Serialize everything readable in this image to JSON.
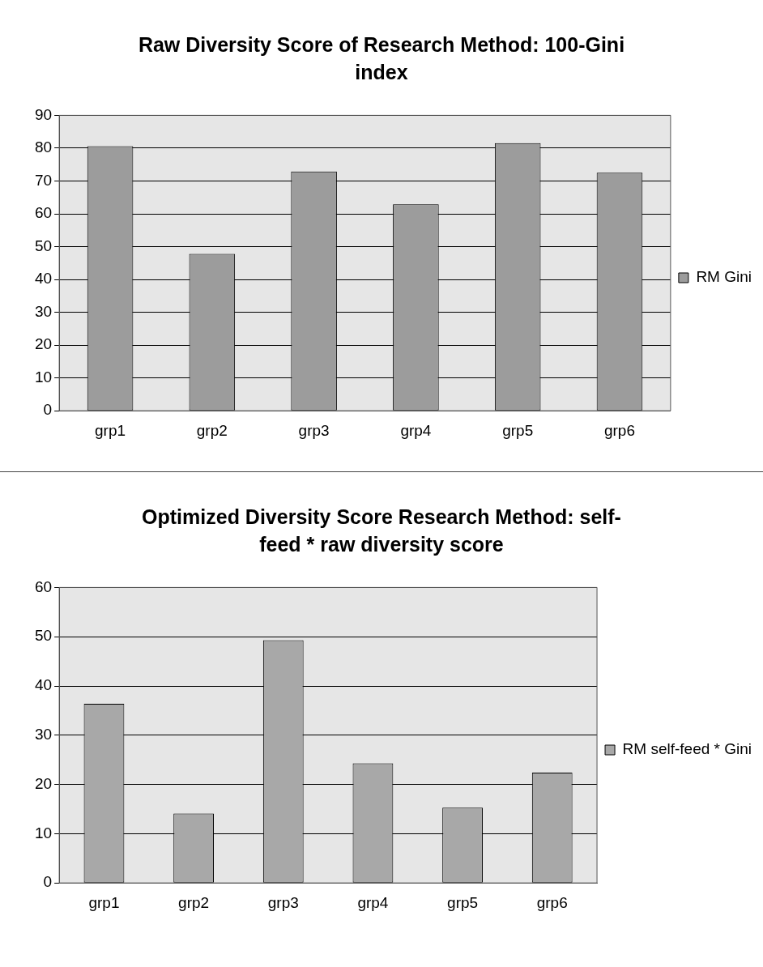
{
  "chart_data": [
    {
      "type": "bar",
      "title": "Raw Diversity Score of Research Method: 100-Gini index",
      "categories": [
        "grp1",
        "grp2",
        "grp3",
        "grp4",
        "grp5",
        "grp6"
      ],
      "series": [
        {
          "name": "RM Gini",
          "color": "#9c9c9c",
          "values": [
            80.6,
            47.8,
            72.9,
            62.9,
            81.5,
            72.5
          ]
        }
      ],
      "ylim": [
        0,
        90
      ],
      "yticks": [
        0,
        10,
        20,
        30,
        40,
        50,
        60,
        70,
        80,
        90
      ],
      "grid": "y",
      "legend": "right"
    },
    {
      "type": "bar",
      "title": "Optimized Diversity Score Research Method: self-feed * raw diversity score",
      "categories": [
        "grp1",
        "grp2",
        "grp3",
        "grp4",
        "grp5",
        "grp6"
      ],
      "series": [
        {
          "name": "RM self-feed * Gini",
          "color": "#a8a8a8",
          "values": [
            36.4,
            14.1,
            49.3,
            24.3,
            15.3,
            22.4
          ]
        }
      ],
      "ylim": [
        0,
        60
      ],
      "yticks": [
        0,
        10,
        20,
        30,
        40,
        50,
        60
      ],
      "grid": "y",
      "legend": "right"
    }
  ]
}
